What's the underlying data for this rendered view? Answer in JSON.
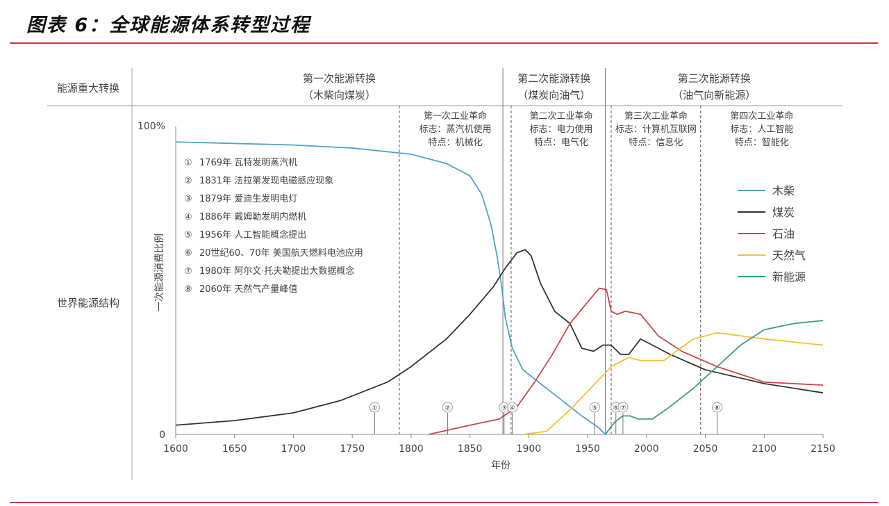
{
  "figure_title": "图表 6：全球能源体系转型过程",
  "colors": {
    "rule": "#c23a3f",
    "wood": "#4fa3c7",
    "coal": "#333333",
    "oil": "#c9464a",
    "gas": "#f1c232",
    "new_energy": "#3a9e7e",
    "grid_line": "#777777",
    "annotation_marker": "#777777"
  },
  "header": {
    "row_label": "能源重大转换",
    "transitions": [
      {
        "title": "第一次能源转换",
        "subtitle": "（木柴向煤炭）",
        "start": 1600,
        "end": 1878
      },
      {
        "title": "第二次能源转换",
        "subtitle": "（煤炭向油气）",
        "start": 1878,
        "end": 1965
      },
      {
        "title": "第三次能源转换",
        "subtitle": "（油气向新能源）",
        "start": 1965,
        "end": 2150
      }
    ]
  },
  "side_label": "世界能源结构",
  "revolutions": [
    {
      "lines": [
        "第一次工业革命",
        "标志：蒸汽机使用",
        "特点：机械化"
      ],
      "start": 1790,
      "end": 1885
    },
    {
      "lines": [
        "第二次工业革命",
        "标志：电力使用",
        "特点：电气化"
      ],
      "start": 1885,
      "end": 1970
    },
    {
      "lines": [
        "第三次工业革命",
        "标志：计算机互联网",
        "特点：信息化"
      ],
      "start": 1970,
      "end": 2046
    },
    {
      "lines": [
        "第四次工业革命",
        "标志：人工智能",
        "特点：智能化"
      ],
      "start": 2046,
      "end": 2150
    }
  ],
  "events": [
    {
      "marker": "①",
      "text": "1769年 瓦特发明蒸汽机",
      "year": 1769
    },
    {
      "marker": "②",
      "text": "1831年 法拉第发现电磁感应现象",
      "year": 1831
    },
    {
      "marker": "③",
      "text": "1879年 爱迪生发明电灯",
      "year": 1879
    },
    {
      "marker": "④",
      "text": "1886年 戴姆勒发明内燃机",
      "year": 1886
    },
    {
      "marker": "⑤",
      "text": "1956年 人工智能概念提出",
      "year": 1956
    },
    {
      "marker": "⑥",
      "text": "20世纪60、70年 美国航天燃料电池应用",
      "year": 1974
    },
    {
      "marker": "⑦",
      "text": "1980年 阿尔文·托夫勒提出大数据概念",
      "year": 1980
    },
    {
      "marker": "⑧",
      "text": "2060年 天然气产量峰值",
      "year": 2060
    }
  ],
  "chart_data": {
    "type": "line",
    "xlabel": "年份",
    "ylabel": "一次能源消费比例",
    "xlim": [
      1600,
      2150
    ],
    "ylim": [
      0,
      100
    ],
    "x_ticks": [
      "1600",
      "1650",
      "1700",
      "1750",
      "1800",
      "1850",
      "1900",
      "1950",
      "2000",
      "2050",
      "2100",
      "2150"
    ],
    "y_ticks": [
      "0",
      "100%"
    ],
    "legend_position": "right",
    "series": [
      {
        "name": "木柴",
        "color_key": "wood",
        "points": [
          [
            1600,
            95
          ],
          [
            1700,
            94
          ],
          [
            1750,
            93
          ],
          [
            1800,
            91
          ],
          [
            1830,
            88
          ],
          [
            1850,
            84
          ],
          [
            1860,
            78
          ],
          [
            1868,
            68
          ],
          [
            1873,
            58
          ],
          [
            1877,
            48
          ],
          [
            1880,
            38
          ],
          [
            1886,
            28
          ],
          [
            1895,
            21
          ],
          [
            1905,
            18
          ],
          [
            1925,
            12
          ],
          [
            1945,
            6
          ],
          [
            1960,
            2
          ],
          [
            1965,
            0
          ]
        ]
      },
      {
        "name": "煤炭",
        "color_key": "coal",
        "points": [
          [
            1600,
            3
          ],
          [
            1650,
            4.5
          ],
          [
            1700,
            7
          ],
          [
            1740,
            11
          ],
          [
            1780,
            17
          ],
          [
            1800,
            22
          ],
          [
            1830,
            31
          ],
          [
            1850,
            39
          ],
          [
            1870,
            48
          ],
          [
            1880,
            54
          ],
          [
            1890,
            59
          ],
          [
            1897,
            60
          ],
          [
            1902,
            58
          ],
          [
            1910,
            49
          ],
          [
            1922,
            40
          ],
          [
            1935,
            36
          ],
          [
            1945,
            28
          ],
          [
            1955,
            27
          ],
          [
            1963,
            29
          ],
          [
            1970,
            29
          ],
          [
            1978,
            26
          ],
          [
            1985,
            26
          ],
          [
            1995,
            31
          ],
          [
            2005,
            29
          ],
          [
            2020,
            26
          ],
          [
            2050,
            21
          ],
          [
            2100,
            16.5
          ],
          [
            2150,
            13.5
          ]
        ]
      },
      {
        "name": "石油",
        "color_key": "oil",
        "points": [
          [
            1815,
            0
          ],
          [
            1850,
            3
          ],
          [
            1875,
            5
          ],
          [
            1890,
            9
          ],
          [
            1905,
            17
          ],
          [
            1920,
            26
          ],
          [
            1935,
            36
          ],
          [
            1950,
            43
          ],
          [
            1960,
            47.5
          ],
          [
            1966,
            47
          ],
          [
            1970,
            40
          ],
          [
            1975,
            39
          ],
          [
            1982,
            40
          ],
          [
            1995,
            39
          ],
          [
            2010,
            32
          ],
          [
            2030,
            27
          ],
          [
            2060,
            22
          ],
          [
            2100,
            17
          ],
          [
            2150,
            16
          ]
        ]
      },
      {
        "name": "天然气",
        "color_key": "gas",
        "points": [
          [
            1895,
            0
          ],
          [
            1915,
            1
          ],
          [
            1935,
            8
          ],
          [
            1955,
            16
          ],
          [
            1970,
            22
          ],
          [
            1985,
            25
          ],
          [
            1995,
            24
          ],
          [
            2015,
            24
          ],
          [
            2025,
            27
          ],
          [
            2040,
            31
          ],
          [
            2060,
            33
          ],
          [
            2080,
            32
          ],
          [
            2100,
            31
          ],
          [
            2150,
            29
          ]
        ]
      },
      {
        "name": "新能源",
        "color_key": "new_energy",
        "points": [
          [
            1965,
            0
          ],
          [
            1973,
            4
          ],
          [
            1980,
            6
          ],
          [
            1986,
            6
          ],
          [
            1993,
            5
          ],
          [
            2005,
            5
          ],
          [
            2020,
            9
          ],
          [
            2040,
            15
          ],
          [
            2060,
            22
          ],
          [
            2080,
            29
          ],
          [
            2100,
            34
          ],
          [
            2125,
            36
          ],
          [
            2150,
            37
          ]
        ]
      }
    ]
  }
}
